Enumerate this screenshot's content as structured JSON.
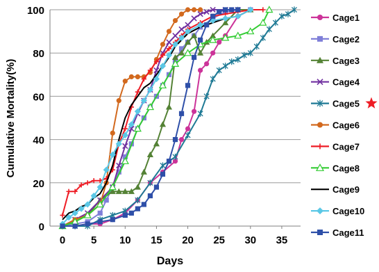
{
  "chart_data": {
    "type": "line",
    "title": "",
    "xlabel": "Days",
    "ylabel": "Cumulative Mortality(%)",
    "xlim": [
      -2,
      38
    ],
    "ylim": [
      0,
      100
    ],
    "x_ticks": [
      0,
      5,
      10,
      15,
      20,
      25,
      30,
      35
    ],
    "y_ticks": [
      0,
      20,
      40,
      60,
      80,
      100
    ],
    "grid": "horizontal",
    "legend_position": "right",
    "star_marker": {
      "series": "Cage5",
      "color": "#ee1c25"
    },
    "series": [
      {
        "name": "Cage1",
        "color": "#cc3399",
        "marker": "circle",
        "x": [
          0,
          2,
          4,
          6,
          8,
          10,
          12,
          14,
          16,
          18,
          19,
          20,
          21,
          22,
          23,
          24,
          25,
          26,
          28,
          30
        ],
        "y": [
          0,
          0,
          1,
          1,
          3,
          6,
          12,
          20,
          25,
          30,
          40,
          45,
          53,
          72,
          75,
          80,
          85,
          88,
          97,
          100
        ]
      },
      {
        "name": "Cage2",
        "color": "#7f7fd8",
        "marker": "square",
        "x": [
          0,
          2,
          4,
          6,
          7,
          8,
          9,
          10,
          11,
          12,
          13,
          14,
          15,
          16,
          17,
          18,
          19,
          20,
          21,
          22,
          24,
          26,
          28,
          30
        ],
        "y": [
          0,
          1,
          2,
          6,
          12,
          18,
          25,
          32,
          38,
          45,
          50,
          55,
          60,
          65,
          70,
          76,
          82,
          85,
          88,
          92,
          96,
          99,
          100,
          100
        ]
      },
      {
        "name": "Cage3",
        "color": "#548235",
        "marker": "triangle",
        "x": [
          0,
          2,
          4,
          6,
          8,
          9,
          10,
          11,
          12,
          13,
          14,
          15,
          16,
          17,
          18,
          19,
          20,
          21,
          22,
          23,
          24,
          26,
          28,
          30
        ],
        "y": [
          0,
          2,
          5,
          12,
          16,
          16,
          16,
          16,
          18,
          25,
          33,
          38,
          47,
          55,
          78,
          80,
          85,
          88,
          80,
          85,
          88,
          94,
          100,
          100
        ]
      },
      {
        "name": "Cage4",
        "color": "#7030a0",
        "marker": "x",
        "x": [
          0,
          2,
          4,
          6,
          8,
          9,
          10,
          11,
          12,
          13,
          14,
          15,
          16,
          17,
          18,
          19,
          20,
          21,
          22,
          23,
          24,
          26,
          28
        ],
        "y": [
          0,
          3,
          6,
          12,
          18,
          28,
          37,
          45,
          52,
          58,
          63,
          72,
          80,
          85,
          88,
          91,
          93,
          96,
          98,
          99,
          100,
          100,
          100
        ]
      },
      {
        "name": "Cage5",
        "color": "#1f7a95",
        "marker": "asterisk",
        "x": [
          0,
          2,
          4,
          6,
          8,
          10,
          12,
          14,
          16,
          18,
          20,
          22,
          23,
          24,
          25,
          26,
          27,
          28,
          29,
          30,
          31,
          32,
          33,
          34,
          35,
          36,
          37
        ],
        "y": [
          0,
          0,
          0,
          3,
          5,
          7,
          12,
          20,
          28,
          32,
          42,
          52,
          60,
          68,
          72,
          74,
          76,
          77,
          79,
          80,
          83,
          87,
          91,
          94,
          97,
          98,
          100
        ]
      },
      {
        "name": "Cage6",
        "color": "#d2691e",
        "marker": "circle",
        "x": [
          0,
          2,
          4,
          6,
          7,
          8,
          9,
          10,
          11,
          12,
          13,
          14,
          15,
          16,
          17,
          18,
          19,
          20,
          21,
          22
        ],
        "y": [
          0,
          3,
          5,
          10,
          20,
          43,
          58,
          67,
          69,
          69,
          69,
          71,
          77,
          84,
          90,
          95,
          98,
          100,
          100,
          100
        ]
      },
      {
        "name": "Cage7",
        "color": "#ee1c25",
        "marker": "plus",
        "x": [
          0,
          1,
          2,
          3,
          4,
          5,
          6,
          7,
          8,
          9,
          10,
          11,
          12,
          13,
          14,
          15,
          16,
          17,
          18,
          19,
          20,
          22,
          24,
          26,
          28,
          30,
          32
        ],
        "y": [
          5,
          16,
          16,
          19,
          20,
          21,
          21,
          22,
          26,
          38,
          45,
          55,
          62,
          68,
          72,
          76,
          79,
          82,
          85,
          88,
          91,
          94,
          97,
          98,
          99,
          100,
          100
        ]
      },
      {
        "name": "Cage8",
        "color": "#33cc33",
        "marker": "triangle-open",
        "x": [
          0,
          2,
          4,
          6,
          8,
          10,
          12,
          14,
          16,
          18,
          20,
          22,
          24,
          26,
          28,
          30,
          32,
          33
        ],
        "y": [
          0,
          2,
          5,
          10,
          18,
          30,
          45,
          55,
          65,
          75,
          80,
          84,
          86,
          87,
          88,
          90,
          94,
          100
        ]
      },
      {
        "name": "Cage9",
        "color": "#000000",
        "marker": "none",
        "x": [
          0,
          1,
          2,
          3,
          4,
          5,
          6,
          7,
          8,
          9,
          10,
          11,
          12,
          13,
          14,
          15,
          16,
          17,
          18,
          19,
          20,
          22,
          24,
          26,
          28,
          30
        ],
        "y": [
          3,
          6,
          7,
          9,
          10,
          13,
          15,
          20,
          28,
          40,
          50,
          56,
          60,
          64,
          66,
          70,
          74,
          78,
          83,
          86,
          89,
          92,
          94,
          96,
          97,
          100
        ]
      },
      {
        "name": "Cage10",
        "color": "#5bc8e6",
        "marker": "diamond",
        "x": [
          0,
          1,
          2,
          3,
          4,
          5,
          6,
          7,
          8,
          9,
          10,
          11,
          12,
          13,
          14,
          15,
          16,
          17,
          18,
          19,
          20,
          22,
          24,
          26,
          28,
          30
        ],
        "y": [
          1,
          4,
          6,
          8,
          10,
          14,
          18,
          26,
          33,
          38,
          42,
          47,
          53,
          58,
          63,
          68,
          74,
          79,
          84,
          87,
          90,
          93,
          95,
          96,
          97,
          100
        ]
      },
      {
        "name": "Cage11",
        "color": "#2e4fa8",
        "marker": "square",
        "x": [
          0,
          2,
          4,
          6,
          8,
          10,
          11,
          12,
          13,
          14,
          15,
          16,
          17,
          18,
          19,
          20,
          21,
          22,
          23,
          24,
          25,
          26,
          27,
          28
        ],
        "y": [
          0,
          0,
          1,
          2,
          3,
          5,
          6,
          8,
          10,
          14,
          18,
          24,
          30,
          40,
          52,
          65,
          78,
          86,
          93,
          97,
          99,
          100,
          100,
          100
        ]
      }
    ]
  }
}
